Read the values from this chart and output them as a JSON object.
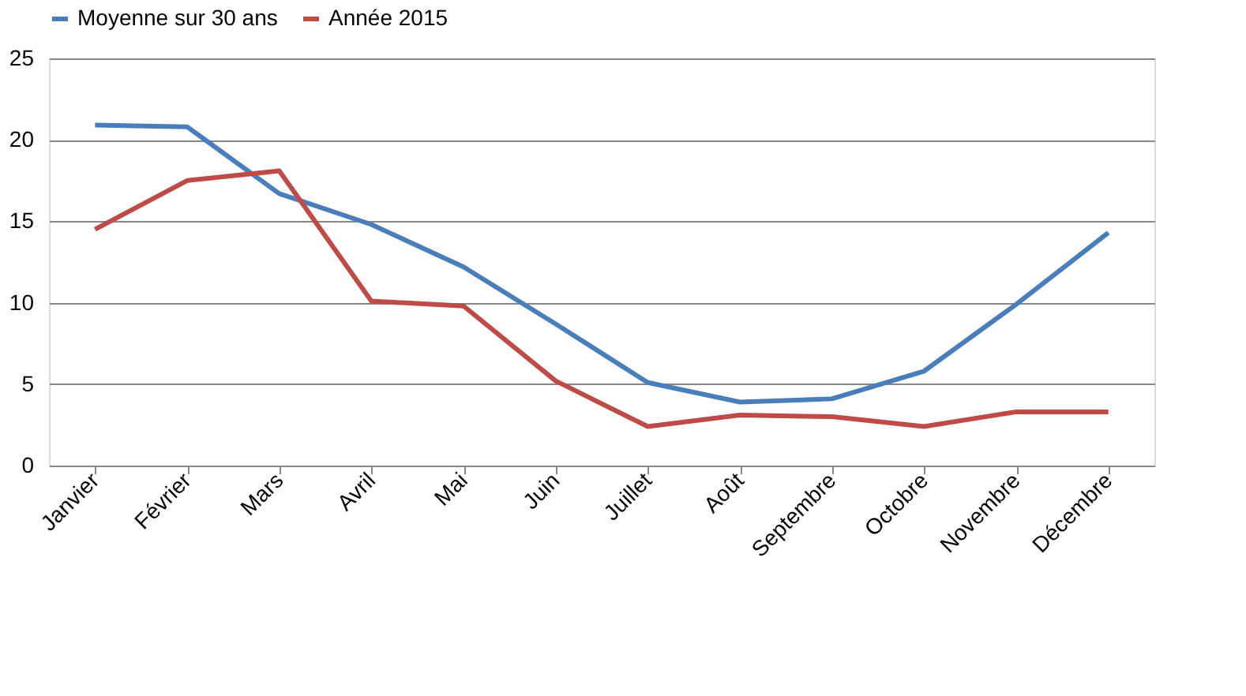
{
  "chart_data": {
    "type": "line",
    "categories": [
      "Janvier",
      "Février",
      "Mars",
      "Avril",
      "Mai",
      "Juin",
      "Juillet",
      "Août",
      "Septembre",
      "Octobre",
      "Novembre",
      "Décembre"
    ],
    "series": [
      {
        "name": "Moyenne sur 30 ans",
        "color": "#4a7ebb",
        "values": [
          20.9,
          20.8,
          16.7,
          14.8,
          12.2,
          8.7,
          5.1,
          3.9,
          4.1,
          5.8,
          9.9,
          14.3
        ]
      },
      {
        "name": "Année 2015",
        "color": "#be4b48",
        "values": [
          14.5,
          17.5,
          18.1,
          10.1,
          9.8,
          5.2,
          2.4,
          3.1,
          3.0,
          2.4,
          3.3,
          3.3
        ]
      }
    ],
    "ylim": [
      0,
      25
    ],
    "yticks": [
      0,
      5,
      10,
      15,
      20,
      25
    ],
    "grid": "y",
    "legend": "top",
    "marker": "none",
    "line_style": "solid"
  }
}
